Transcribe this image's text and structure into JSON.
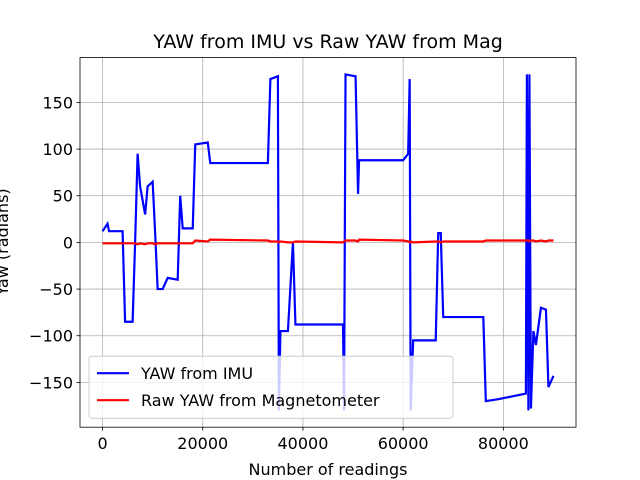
{
  "chart_data": {
    "type": "line",
    "title": "YAW from IMU vs Raw YAW from Mag",
    "x_label": "Number of readings",
    "y_label": "Yaw (radians)",
    "x": [
      0,
      1000,
      1300,
      4000,
      4500,
      5000,
      6000,
      6500,
      7000,
      7500,
      8500,
      9000,
      10000,
      10500,
      11000,
      12000,
      13000,
      15000,
      15500,
      16000,
      18000,
      18500,
      21000,
      21500,
      33000,
      33500,
      35000,
      35200,
      35500,
      37000,
      38000,
      38500,
      48000,
      48200,
      48500,
      50500,
      51000,
      51200,
      60000,
      61000,
      61300,
      61500,
      62000,
      66500,
      67000,
      67500,
      68000,
      76000,
      76500,
      79000,
      84500,
      84700,
      85000,
      85200,
      85500,
      86000,
      86500,
      87500,
      88500,
      89000,
      90000
    ],
    "series": [
      {
        "name": "YAW from IMU",
        "color": "#0000ff",
        "values": [
          12,
          20,
          12,
          12,
          -85,
          -85,
          -85,
          0,
          95,
          60,
          30,
          60,
          65,
          10,
          -50,
          -50,
          -38,
          -40,
          50,
          15,
          15,
          105,
          107,
          85,
          85,
          175,
          178,
          -180,
          -95,
          -95,
          0,
          -88,
          -88,
          -180,
          180,
          178,
          52,
          88,
          88,
          95,
          175,
          -180,
          -105,
          -105,
          10,
          10,
          -80,
          -80,
          -170,
          -168,
          -162,
          180,
          -180,
          180,
          -178,
          -95,
          -110,
          -70,
          -72,
          -155,
          -143
        ]
      },
      {
        "name": "Raw YAW from Magnetometer",
        "color": "#ff0000",
        "values": [
          -1,
          -1,
          -1,
          -1,
          -1,
          -1,
          -1,
          -1,
          -2,
          -1,
          -2,
          -1,
          -1,
          -2,
          -1,
          -1,
          -1,
          -1,
          -1,
          -1,
          -1,
          2,
          1,
          3,
          2,
          1,
          1,
          0,
          1,
          0,
          0,
          1,
          0,
          1,
          2,
          2,
          1,
          3,
          2,
          1,
          0,
          1,
          0,
          1,
          1,
          0,
          1,
          1,
          2,
          2,
          2,
          2,
          2,
          1,
          2,
          2,
          1,
          2,
          1,
          2,
          2
        ]
      }
    ],
    "xlim": [
      -4500,
      94500
    ],
    "ylim": [
      -198,
      198
    ],
    "xticks": [
      0,
      20000,
      40000,
      60000,
      80000
    ],
    "yticks": [
      {
        "value": -150,
        "label": "−150"
      },
      {
        "value": -100,
        "label": "−100"
      },
      {
        "value": -50,
        "label": "−50"
      },
      0,
      50,
      100,
      150
    ],
    "grid": true,
    "legend": "lower left"
  }
}
